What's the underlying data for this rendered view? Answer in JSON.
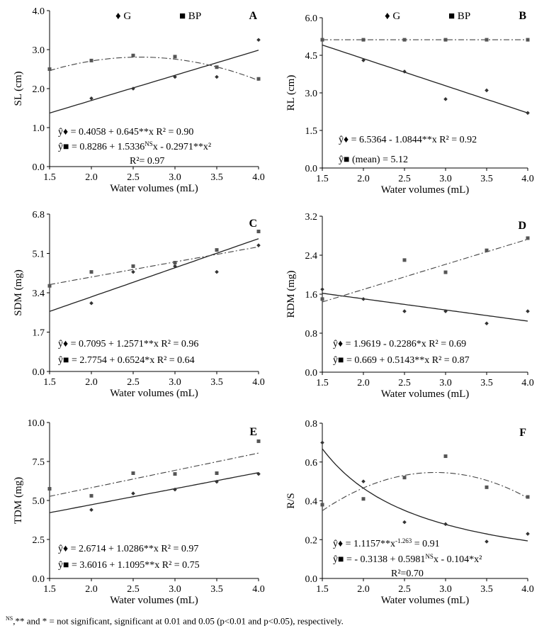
{
  "chart_data": [
    {
      "id": "A",
      "type": "scatter",
      "panel_label": "A",
      "xlabel": "Water volumes (mL)",
      "ylabel": "SL (cm)",
      "xlim": [
        1.5,
        4.0
      ],
      "ylim": [
        0.0,
        4.0
      ],
      "xticks": [
        "1.5",
        "2.0",
        "2.5",
        "3.0",
        "3.5",
        "4.0"
      ],
      "yticks": [
        "0.0",
        "1.0",
        "2.0",
        "3.0",
        "4.0"
      ],
      "x": [
        1.5,
        2.0,
        2.5,
        3.0,
        3.5,
        4.0
      ],
      "legend": [
        "♦ G",
        "■ BP"
      ],
      "series": [
        {
          "name": "G",
          "marker": "diamond",
          "values": [
            null,
            1.75,
            2.0,
            2.3,
            2.3,
            3.25
          ],
          "fit": {
            "type": "linear",
            "coef": [
              0.4058,
              0.645
            ]
          }
        },
        {
          "name": "BP",
          "marker": "square",
          "values": [
            2.5,
            2.72,
            2.85,
            2.82,
            2.55,
            2.25
          ],
          "fit": {
            "type": "quadratic",
            "coef": [
              0.8286,
              1.5336,
              -0.2971
            ]
          }
        }
      ],
      "equations": [
        {
          "prefix": "ŷ♦ = 0.4058 + 0.645**x R² = 0.90"
        },
        {
          "prefix": "ŷ■ = 0.8286 + 1.5336",
          "sup": "NS",
          "suffix": "x - 0.2971**x²"
        },
        {
          "prefix": "R²= 0.97"
        }
      ]
    },
    {
      "id": "B",
      "type": "scatter",
      "panel_label": "B",
      "xlabel": "Water volumes (mL)",
      "ylabel": "RL (cm)",
      "xlim": [
        1.5,
        4.0
      ],
      "ylim": [
        0.0,
        6.0
      ],
      "xticks": [
        "1.5",
        "2.0",
        "2.5",
        "3.0",
        "3.5",
        "4.0"
      ],
      "yticks": [
        "0.0",
        "1.5",
        "3.0",
        "4.5",
        "6.0"
      ],
      "x": [
        1.5,
        2.0,
        2.5,
        3.0,
        3.5,
        4.0
      ],
      "legend": [
        "♦ G",
        "■ BP"
      ],
      "series": [
        {
          "name": "G",
          "marker": "diamond",
          "values": [
            null,
            4.3,
            3.85,
            2.75,
            3.1,
            2.2
          ],
          "fit": {
            "type": "linear",
            "coef": [
              6.5364,
              -1.0844
            ]
          }
        },
        {
          "name": "BP",
          "marker": "square",
          "values": [
            5.12,
            5.12,
            5.12,
            5.12,
            5.12,
            5.12
          ],
          "fit": {
            "type": "mean",
            "coef": [
              5.12
            ]
          }
        }
      ],
      "equations": [
        {
          "prefix": "ŷ♦ =  6.5364 - 1.0844**x R² = 0.92"
        },
        {
          "prefix": "ŷ■ (mean) = 5.12"
        }
      ]
    },
    {
      "id": "C",
      "type": "scatter",
      "panel_label": "C",
      "xlabel": "Water volumes (mL)",
      "ylabel": "SDM (mg)",
      "xlim": [
        1.5,
        4.0
      ],
      "ylim": [
        0.0,
        6.8
      ],
      "xticks": [
        "1.5",
        "2.0",
        "2.5",
        "3.0",
        "3.5",
        "4.0"
      ],
      "yticks": [
        "0.0",
        "1.7",
        "3.4",
        "5.1",
        "6.8"
      ],
      "x": [
        1.5,
        2.0,
        2.5,
        3.0,
        3.5,
        4.0
      ],
      "legend": [],
      "series": [
        {
          "name": "G",
          "marker": "diamond",
          "values": [
            null,
            2.95,
            4.3,
            4.55,
            4.3,
            5.45
          ],
          "fit": {
            "type": "linear",
            "coef": [
              0.7095,
              1.2571
            ]
          }
        },
        {
          "name": "BP",
          "marker": "square",
          "values": [
            3.7,
            4.3,
            4.55,
            4.7,
            5.25,
            6.05
          ],
          "fit": {
            "type": "linear",
            "coef": [
              2.7754,
              0.6524
            ]
          }
        }
      ],
      "equations": [
        {
          "prefix": "ŷ♦ = 0.7095 + 1.2571**x R² = 0.96"
        },
        {
          "prefix": "ŷ■ = 2.7754 + 0.6524*x R² = 0.64"
        }
      ]
    },
    {
      "id": "D",
      "type": "scatter",
      "panel_label": "D",
      "xlabel": "Water volumes (mL)",
      "ylabel": "RDM (mg)",
      "xlim": [
        1.5,
        4.0
      ],
      "ylim": [
        0.0,
        3.2
      ],
      "xticks": [
        "1.5",
        "2.0",
        "2.5",
        "3.0",
        "3.5",
        "4.0"
      ],
      "yticks": [
        "0.0",
        "0.8",
        "1.6",
        "2.4",
        "3.2"
      ],
      "x": [
        1.5,
        2.0,
        2.5,
        3.0,
        3.5,
        4.0
      ],
      "legend": [],
      "series": [
        {
          "name": "G",
          "marker": "diamond",
          "values": [
            1.7,
            1.5,
            1.25,
            1.25,
            1.0,
            1.25
          ],
          "fit": {
            "type": "linear",
            "coef": [
              1.9619,
              -0.2286
            ]
          }
        },
        {
          "name": "BP",
          "marker": "square",
          "values": [
            1.5,
            null,
            2.3,
            2.05,
            2.5,
            2.75
          ],
          "fit": {
            "type": "linear",
            "coef": [
              0.669,
              0.5143
            ]
          }
        }
      ],
      "equations": [
        {
          "prefix": "ŷ♦ = 1.9619 - 0.2286*x R² = 0.69"
        },
        {
          "prefix": "ŷ■ = 0.669 + 0.5143**x R² = 0.87"
        }
      ]
    },
    {
      "id": "E",
      "type": "scatter",
      "panel_label": "E",
      "xlabel": "Water volumes (mL)",
      "ylabel": "TDM (mg)",
      "xlim": [
        1.5,
        4.0
      ],
      "ylim": [
        0.0,
        10.0
      ],
      "xticks": [
        "1.5",
        "2.0",
        "2.5",
        "3.0",
        "3.5",
        "4.0"
      ],
      "yticks": [
        "0.0",
        "2.5",
        "5.0",
        "7.5",
        "10.0"
      ],
      "x": [
        1.5,
        2.0,
        2.5,
        3.0,
        3.5,
        4.0
      ],
      "legend": [],
      "series": [
        {
          "name": "G",
          "marker": "diamond",
          "values": [
            null,
            4.4,
            5.45,
            5.7,
            6.2,
            6.7
          ],
          "fit": {
            "type": "linear",
            "coef": [
              2.6714,
              1.0286
            ]
          }
        },
        {
          "name": "BP",
          "marker": "square",
          "values": [
            5.75,
            5.3,
            6.75,
            6.7,
            6.75,
            8.8
          ],
          "fit": {
            "type": "linear",
            "coef": [
              3.6016,
              1.1095
            ]
          }
        }
      ],
      "equations": [
        {
          "prefix": "ŷ♦ = 2.6714 + 1.0286**x R² = 0.97"
        },
        {
          "prefix": "ŷ■ = 3.6016 + 1.1095**x R² = 0.75"
        }
      ]
    },
    {
      "id": "F",
      "type": "scatter",
      "panel_label": "F",
      "xlabel": "Water volumes (mL)",
      "ylabel": "R/S",
      "xlim": [
        1.5,
        4.0
      ],
      "ylim": [
        0.0,
        0.8
      ],
      "xticks": [
        "1.5",
        "2.0",
        "2.5",
        "3.0",
        "3.5",
        "4.0"
      ],
      "yticks": [
        "0.0",
        "0.2",
        "0.4",
        "0.6",
        "0.8"
      ],
      "x": [
        1.5,
        2.0,
        2.5,
        3.0,
        3.5,
        4.0
      ],
      "legend": [],
      "series": [
        {
          "name": "G",
          "marker": "diamond",
          "values": [
            0.7,
            0.5,
            0.29,
            0.28,
            0.19,
            0.23
          ],
          "fit": {
            "type": "power",
            "coef": [
              1.1157,
              -1.263
            ]
          }
        },
        {
          "name": "BP",
          "marker": "square",
          "values": [
            0.38,
            0.41,
            0.52,
            0.63,
            0.47,
            0.42
          ],
          "fit": {
            "type": "quadratic",
            "coef": [
              -0.3138,
              0.5981,
              -0.104
            ]
          }
        }
      ],
      "equations": [
        {
          "prefix": "ŷ♦ = 1.1157**x",
          "sup": "-1.263",
          "suffix": " = 0.91"
        },
        {
          "prefix": "ŷ■ = - 0.3138 + 0.5981",
          "sup": "NS",
          "suffix": "x - 0.104*x²"
        },
        {
          "prefix": "R²=0.70"
        }
      ]
    }
  ],
  "footnote": {
    "sup": "NS",
    "text": ",** and * = not significant, significant at 0.01 and 0.05 (p<0.01 and p<0.05), respectively."
  }
}
